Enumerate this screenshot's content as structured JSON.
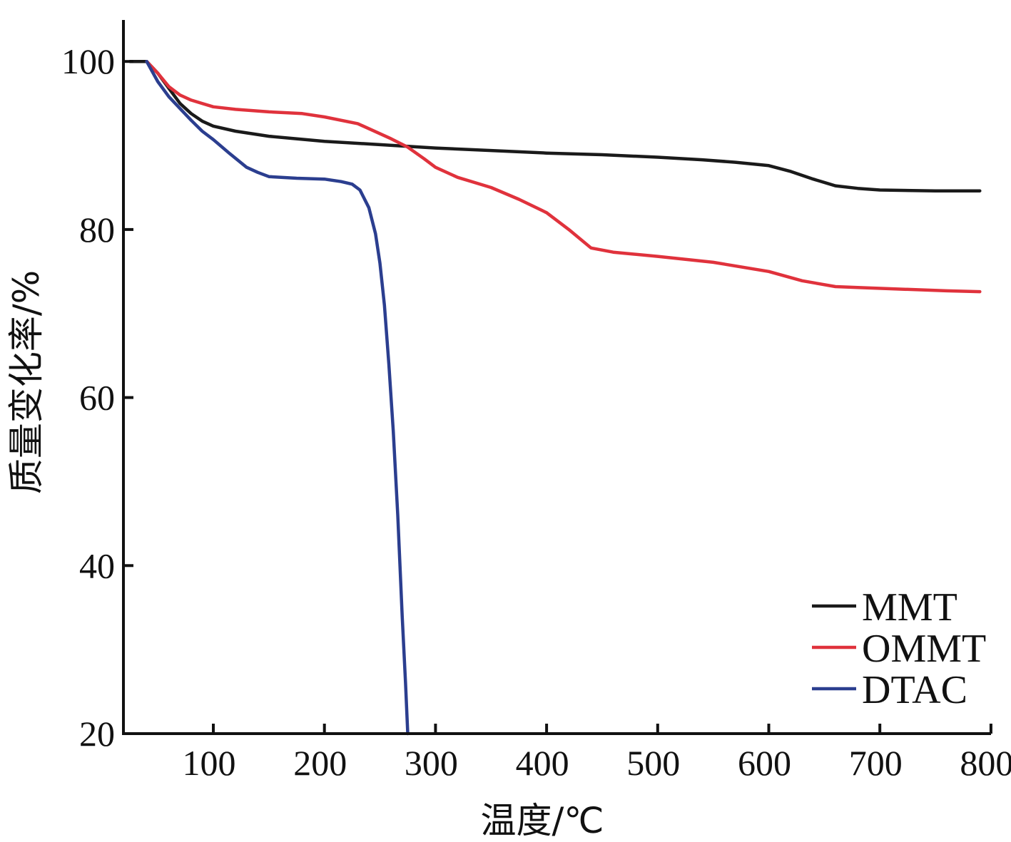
{
  "chart_data": {
    "type": "line",
    "xlabel": "温度/℃",
    "ylabel": "质量变化率/%",
    "xlim": [
      25,
      800
    ],
    "ylim": [
      20,
      105
    ],
    "x_ticks": [
      100,
      200,
      300,
      400,
      500,
      600,
      700,
      800
    ],
    "y_ticks": [
      20,
      40,
      60,
      80,
      100
    ],
    "grid": false,
    "legend_position": "bottom-right",
    "series": [
      {
        "name": "MMT",
        "color": "#1a1a1a",
        "points": [
          [
            25,
            100
          ],
          [
            40,
            100
          ],
          [
            50,
            98.6
          ],
          [
            60,
            96.8
          ],
          [
            70,
            95.0
          ],
          [
            80,
            93.8
          ],
          [
            90,
            92.9
          ],
          [
            100,
            92.3
          ],
          [
            120,
            91.7
          ],
          [
            150,
            91.1
          ],
          [
            200,
            90.5
          ],
          [
            250,
            90.1
          ],
          [
            300,
            89.7
          ],
          [
            350,
            89.4
          ],
          [
            400,
            89.1
          ],
          [
            450,
            88.9
          ],
          [
            500,
            88.6
          ],
          [
            540,
            88.3
          ],
          [
            570,
            88.0
          ],
          [
            600,
            87.6
          ],
          [
            620,
            86.9
          ],
          [
            640,
            86.0
          ],
          [
            660,
            85.2
          ],
          [
            680,
            84.9
          ],
          [
            700,
            84.7
          ],
          [
            750,
            84.6
          ],
          [
            790,
            84.6
          ]
        ]
      },
      {
        "name": "OMMT",
        "color": "#e0323c",
        "points": [
          [
            40,
            100
          ],
          [
            50,
            98.6
          ],
          [
            60,
            97.0
          ],
          [
            70,
            96.0
          ],
          [
            80,
            95.4
          ],
          [
            90,
            95.0
          ],
          [
            100,
            94.6
          ],
          [
            120,
            94.3
          ],
          [
            150,
            94.0
          ],
          [
            180,
            93.8
          ],
          [
            200,
            93.4
          ],
          [
            230,
            92.6
          ],
          [
            260,
            90.8
          ],
          [
            275,
            89.8
          ],
          [
            290,
            88.4
          ],
          [
            300,
            87.4
          ],
          [
            320,
            86.2
          ],
          [
            350,
            85.0
          ],
          [
            375,
            83.6
          ],
          [
            400,
            82.0
          ],
          [
            420,
            80.0
          ],
          [
            440,
            77.8
          ],
          [
            460,
            77.3
          ],
          [
            500,
            76.8
          ],
          [
            550,
            76.1
          ],
          [
            600,
            75.0
          ],
          [
            630,
            73.9
          ],
          [
            660,
            73.2
          ],
          [
            680,
            73.1
          ],
          [
            720,
            72.9
          ],
          [
            760,
            72.7
          ],
          [
            790,
            72.6
          ]
        ]
      },
      {
        "name": "DTAC",
        "color": "#2b3e8f",
        "points": [
          [
            40,
            100
          ],
          [
            50,
            97.6
          ],
          [
            60,
            95.8
          ],
          [
            70,
            94.4
          ],
          [
            80,
            93.0
          ],
          [
            90,
            91.7
          ],
          [
            100,
            90.7
          ],
          [
            115,
            89.0
          ],
          [
            130,
            87.4
          ],
          [
            140,
            86.8
          ],
          [
            150,
            86.3
          ],
          [
            175,
            86.1
          ],
          [
            200,
            86.0
          ],
          [
            215,
            85.7
          ],
          [
            225,
            85.4
          ],
          [
            232,
            84.7
          ],
          [
            240,
            82.6
          ],
          [
            246,
            79.5
          ],
          [
            250,
            76.0
          ],
          [
            254,
            71.0
          ],
          [
            258,
            64.0
          ],
          [
            262,
            56.0
          ],
          [
            266,
            46.0
          ],
          [
            270,
            34.0
          ],
          [
            273,
            26.0
          ],
          [
            275,
            20.0
          ]
        ]
      }
    ]
  }
}
